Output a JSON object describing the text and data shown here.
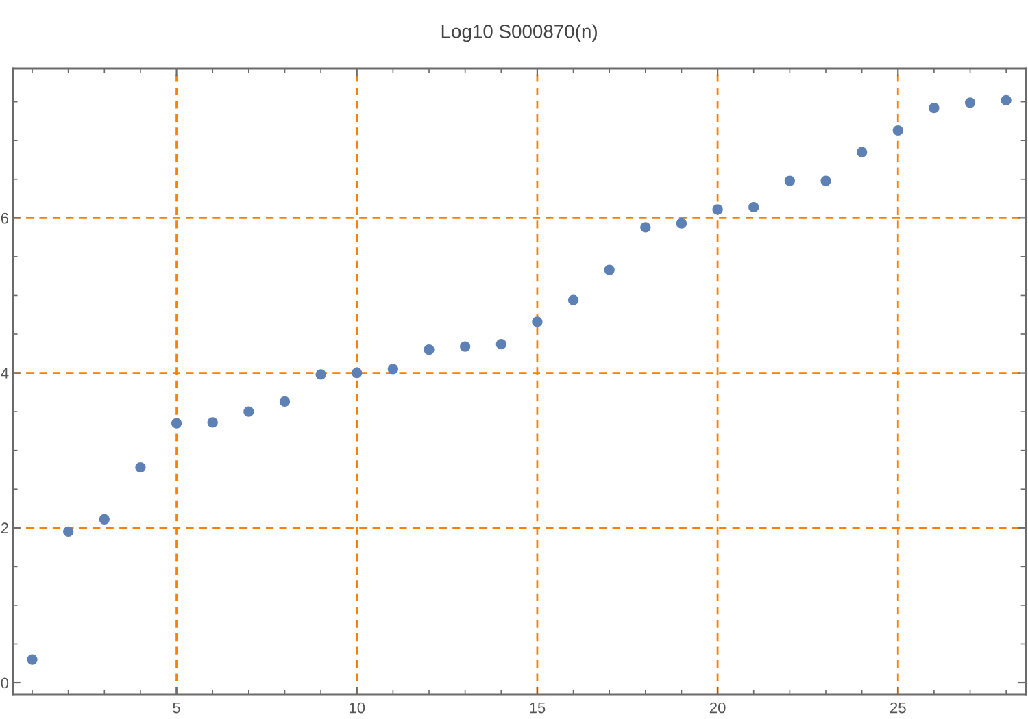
{
  "chart_data": {
    "type": "scatter",
    "title": "Log10 S000870(n)",
    "x": [
      1,
      2,
      3,
      4,
      5,
      6,
      7,
      8,
      9,
      10,
      11,
      12,
      13,
      14,
      15,
      16,
      17,
      18,
      19,
      20,
      21,
      22,
      23,
      24,
      25,
      26,
      27,
      28
    ],
    "values": [
      0.3,
      1.95,
      2.11,
      2.78,
      3.35,
      3.36,
      3.5,
      3.63,
      3.98,
      4.0,
      4.05,
      4.3,
      4.34,
      4.37,
      4.66,
      4.94,
      5.33,
      5.88,
      5.93,
      6.11,
      6.14,
      6.48,
      6.48,
      6.85,
      7.13,
      7.42,
      7.49,
      7.52
    ],
    "color": "#5e81b5",
    "marker": "circle",
    "xlim": [
      0.46,
      28.54
    ],
    "ylim": [
      -0.15,
      7.93
    ],
    "xticks": [
      5,
      10,
      15,
      20,
      25
    ],
    "yticks": [
      0,
      2,
      4,
      6
    ],
    "grid": true
  }
}
